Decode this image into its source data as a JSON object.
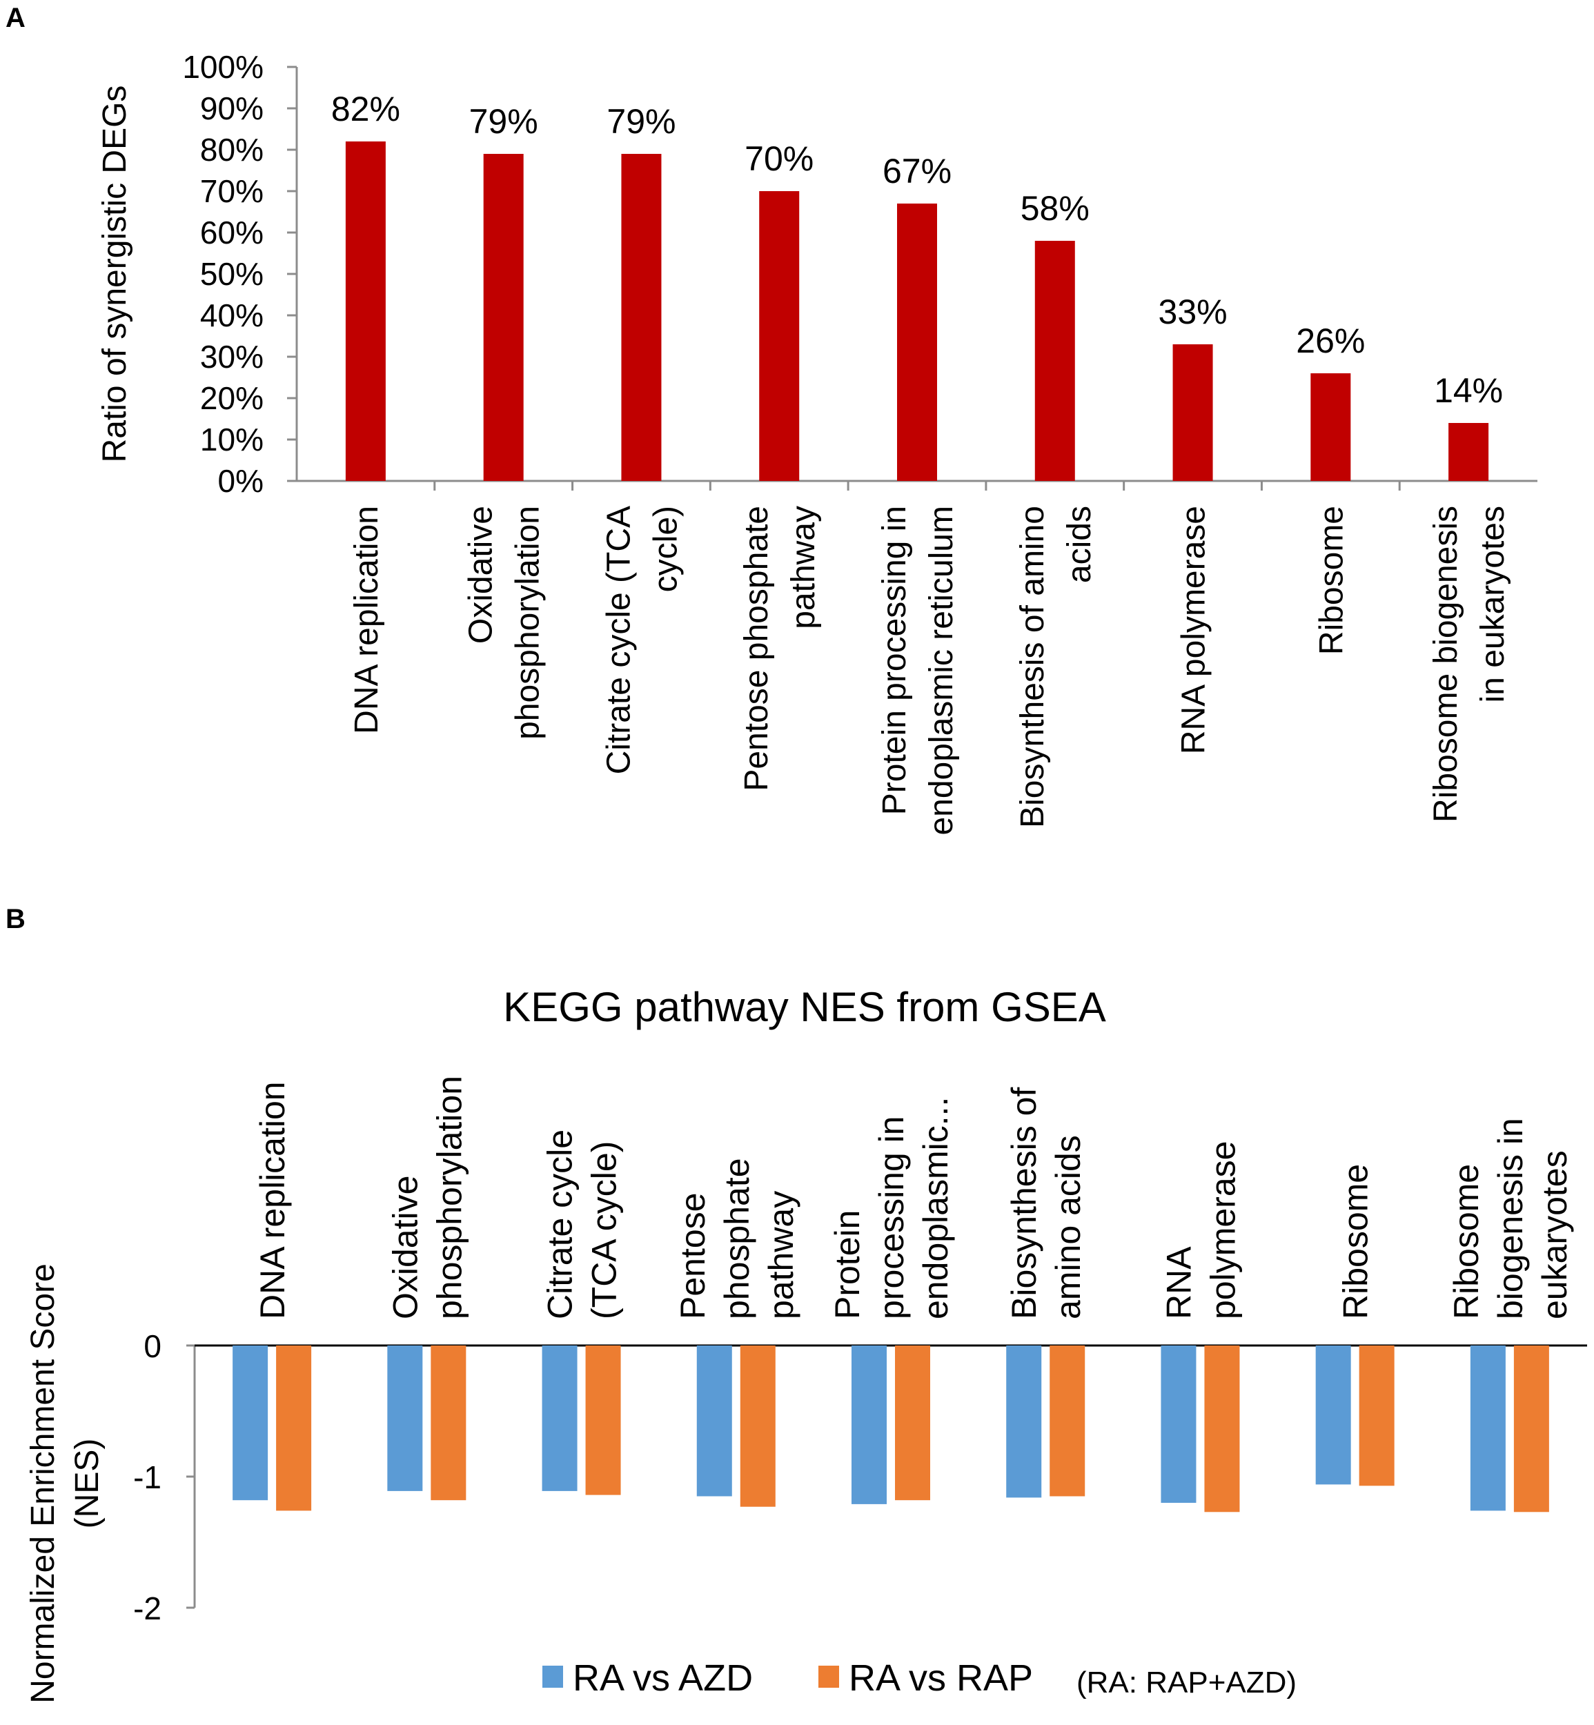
{
  "panels": {
    "a_letter": "A",
    "b_letter": "B"
  },
  "chart_data": [
    {
      "type": "bar",
      "title": "",
      "ylabel": "Ratio of synergistic DEGs",
      "xlabel": "",
      "ylim": [
        0,
        100
      ],
      "yticks": [
        "0%",
        "10%",
        "20%",
        "30%",
        "40%",
        "50%",
        "60%",
        "70%",
        "80%",
        "90%",
        "100%"
      ],
      "categories": [
        [
          "DNA replication"
        ],
        [
          "Oxidative",
          "phosphorylation"
        ],
        [
          "Citrate cycle (TCA",
          "cycle)"
        ],
        [
          "Pentose phosphate",
          "pathway"
        ],
        [
          "Protein processing in",
          "endoplasmic reticulum"
        ],
        [
          "Biosynthesis of amino",
          "acids"
        ],
        [
          "RNA polymerase"
        ],
        [
          "Ribosome"
        ],
        [
          "Ribosome biogenesis",
          "in eukaryotes"
        ]
      ],
      "values": [
        82,
        79,
        79,
        70,
        67,
        58,
        33,
        26,
        14
      ],
      "data_labels": [
        "82%",
        "79%",
        "79%",
        "70%",
        "67%",
        "58%",
        "33%",
        "26%",
        "14%"
      ],
      "color": "#c00000",
      "grid": false,
      "legend": "none"
    },
    {
      "type": "bar",
      "title": "KEGG pathway NES from GSEA",
      "ylabel": [
        "Normalized Enrichment Score",
        "(NES)"
      ],
      "xlabel": "",
      "ylim": [
        -2,
        0
      ],
      "yticks": [
        "0",
        "-1",
        "-2"
      ],
      "categories": [
        [
          "DNA replication"
        ],
        [
          "Oxidative",
          "phosphorylation"
        ],
        [
          "Citrate cycle",
          "(TCA cycle)"
        ],
        [
          "Pentose",
          "phosphate",
          "pathway"
        ],
        [
          "Protein",
          "processing in",
          "endoplasmic..."
        ],
        [
          "Biosynthesis of",
          "amino acids"
        ],
        [
          "RNA",
          "polymerase"
        ],
        [
          "Ribosome"
        ],
        [
          "Ribosome",
          "biogenesis in",
          "eukaryotes"
        ]
      ],
      "series": [
        {
          "name": "RA vs AZD",
          "color": "#5b9bd5",
          "values": [
            -1.18,
            -1.11,
            -1.11,
            -1.15,
            -1.21,
            -1.16,
            -1.2,
            -1.06,
            -1.26
          ]
        },
        {
          "name": "RA vs RAP",
          "color": "#ed7d31",
          "values": [
            -1.26,
            -1.18,
            -1.14,
            -1.23,
            -1.18,
            -1.15,
            -1.27,
            -1.07,
            -1.27
          ]
        }
      ],
      "legend_note": "(RA: RAP+AZD)",
      "legend": "bottom",
      "grid": false
    }
  ]
}
